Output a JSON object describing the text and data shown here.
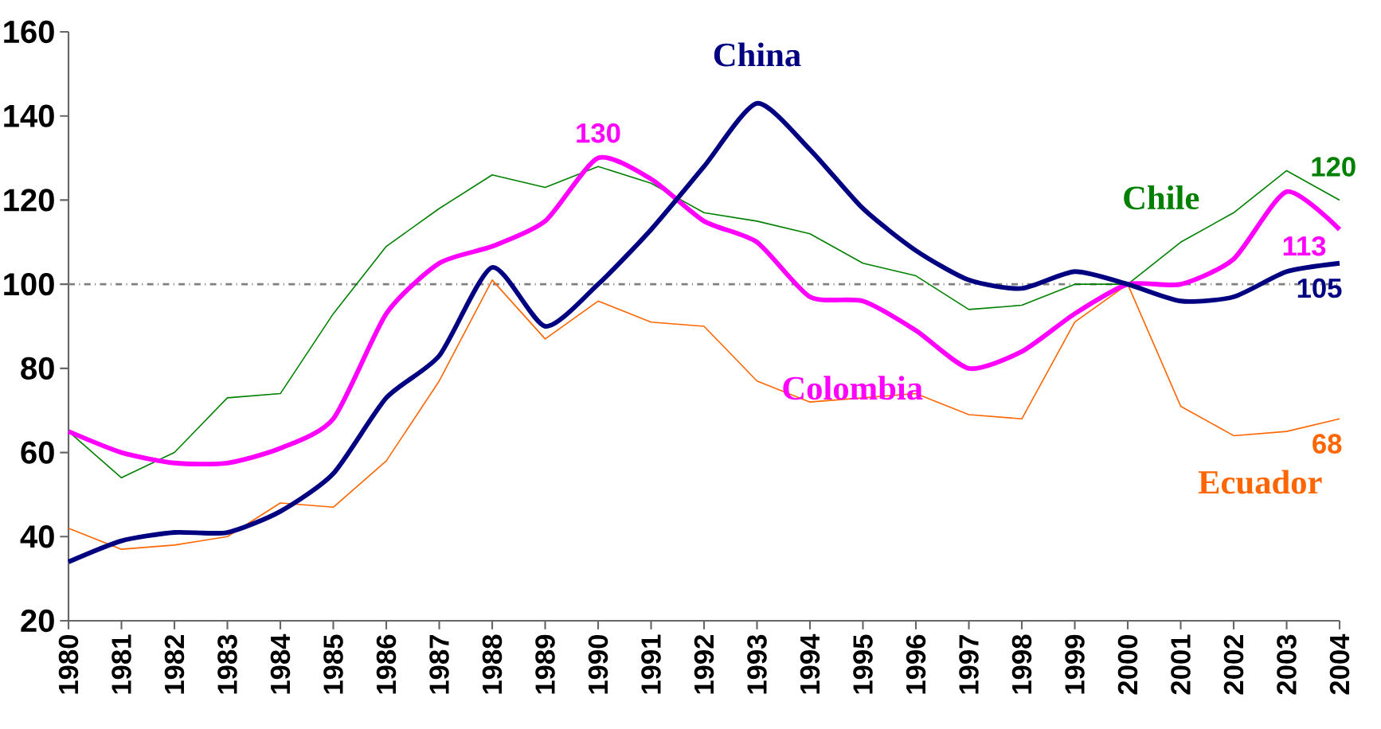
{
  "chart_data": {
    "type": "line",
    "x": [
      1980,
      1981,
      1982,
      1983,
      1984,
      1985,
      1986,
      1987,
      1988,
      1989,
      1990,
      1991,
      1992,
      1993,
      1994,
      1995,
      1996,
      1997,
      1998,
      1999,
      2000,
      2001,
      2002,
      2003,
      2004
    ],
    "series": [
      {
        "name": "China",
        "color": "#000080",
        "values": [
          34,
          39,
          41,
          41,
          46,
          55,
          73,
          83,
          104,
          90,
          100,
          113,
          128,
          143,
          132,
          118,
          108,
          101,
          99,
          103,
          100,
          96,
          97,
          103,
          105
        ],
        "value_labels": [
          null,
          null,
          null,
          null,
          null,
          null,
          null,
          null,
          null,
          null,
          null,
          null,
          null,
          null,
          null,
          null,
          null,
          null,
          null,
          null,
          null,
          null,
          null,
          null,
          "105"
        ]
      },
      {
        "name": "Colombia",
        "color": "#ff00ff",
        "values": [
          65,
          60,
          57.5,
          57.5,
          61,
          68,
          93,
          105,
          109,
          115,
          130,
          125,
          115,
          110,
          97,
          96,
          89,
          80,
          84,
          93,
          100,
          100,
          106,
          122,
          113
        ],
        "value_labels": [
          null,
          null,
          null,
          null,
          null,
          null,
          null,
          null,
          null,
          null,
          "130",
          null,
          null,
          null,
          null,
          null,
          null,
          null,
          null,
          null,
          null,
          null,
          null,
          null,
          "113"
        ]
      },
      {
        "name": "Chile",
        "color": "#008000",
        "values": [
          65,
          54,
          60,
          73,
          74,
          93,
          109,
          118,
          126,
          123,
          128,
          124,
          117,
          115,
          112,
          105,
          102,
          94,
          95,
          100,
          100,
          110,
          117,
          127,
          120
        ],
        "value_labels": [
          null,
          null,
          null,
          null,
          null,
          null,
          null,
          null,
          null,
          null,
          null,
          null,
          null,
          null,
          null,
          null,
          null,
          null,
          null,
          null,
          null,
          null,
          null,
          null,
          "120"
        ]
      },
      {
        "name": "Ecuador",
        "color": "#ff6600",
        "values": [
          42,
          37,
          38,
          40,
          48,
          47,
          58,
          77,
          101,
          87,
          96,
          91,
          90,
          77,
          72,
          73,
          74,
          69,
          68,
          91,
          100,
          71,
          64,
          65,
          68
        ],
        "value_labels": [
          null,
          null,
          null,
          null,
          null,
          null,
          null,
          null,
          null,
          null,
          null,
          null,
          null,
          null,
          null,
          null,
          null,
          null,
          null,
          null,
          null,
          null,
          null,
          null,
          "68"
        ]
      }
    ],
    "xlim": [
      1980,
      2004
    ],
    "xticks": [
      1980,
      1981,
      1982,
      1983,
      1984,
      1985,
      1986,
      1987,
      1988,
      1989,
      1990,
      1991,
      1992,
      1993,
      1994,
      1995,
      1996,
      1997,
      1998,
      1999,
      2000,
      2001,
      2002,
      2003,
      2004
    ],
    "ylim": [
      20,
      160
    ],
    "yticks": [
      20,
      40,
      60,
      80,
      100,
      120,
      140,
      160
    ],
    "ref_lines": [
      {
        "axis": "y",
        "value": 100,
        "color": "#808080",
        "line_style": "dashdotted"
      }
    ],
    "grid": false,
    "legend": false,
    "marker": "none",
    "line_style": "solid"
  }
}
